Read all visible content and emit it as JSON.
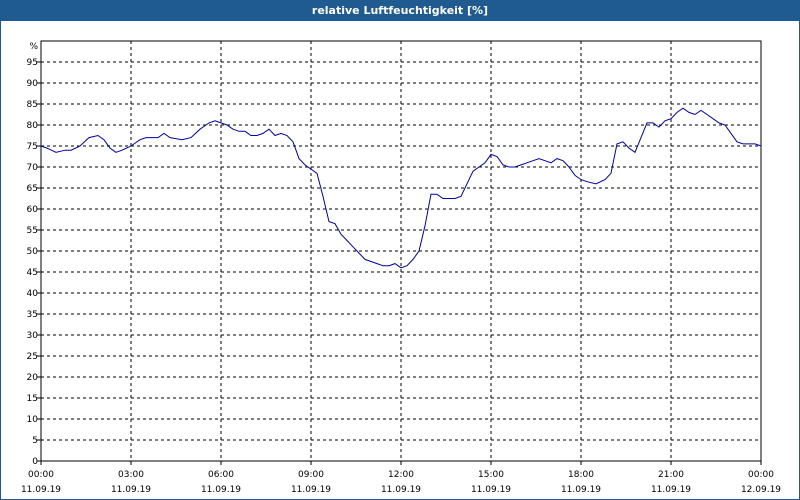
{
  "window": {
    "title": "relative Luftfeuchtigkeit [%]"
  },
  "colors": {
    "title_bar": "#1f5a91",
    "title_text": "#ffffff",
    "line": "#0000aa",
    "grid": "#000000",
    "background": "#ffffff"
  },
  "chart_data": {
    "type": "line",
    "title": "relative Luftfeuchtigkeit [%]",
    "ylabel": "%",
    "xlabel": "",
    "ylim": [
      0,
      100
    ],
    "y_ticks": [
      0,
      5,
      10,
      15,
      20,
      25,
      30,
      35,
      40,
      45,
      50,
      55,
      60,
      65,
      70,
      75,
      80,
      85,
      90,
      95
    ],
    "xlim_hours": [
      0,
      24
    ],
    "x_ticks": [
      {
        "hour": 0,
        "time": "00:00",
        "date": "11.09.19"
      },
      {
        "hour": 3,
        "time": "03:00",
        "date": "11.09.19"
      },
      {
        "hour": 6,
        "time": "06:00",
        "date": "11.09.19"
      },
      {
        "hour": 9,
        "time": "09:00",
        "date": "11.09.19"
      },
      {
        "hour": 12,
        "time": "12:00",
        "date": "11.09.19"
      },
      {
        "hour": 15,
        "time": "15:00",
        "date": "11.09.19"
      },
      {
        "hour": 18,
        "time": "18:00",
        "date": "11.09.19"
      },
      {
        "hour": 21,
        "time": "21:00",
        "date": "11.09.19"
      },
      {
        "hour": 24,
        "time": "00:00",
        "date": "12.09.19"
      }
    ],
    "grid": true,
    "grid_style": "dashed",
    "legend": "none",
    "series": [
      {
        "x": [
          0,
          0.2,
          0.5,
          0.8,
          1.0,
          1.3,
          1.6,
          1.9,
          2.1,
          2.3,
          2.5,
          2.7,
          3.0,
          3.3,
          3.5,
          3.7,
          3.9,
          4.1,
          4.3,
          4.7,
          5.0,
          5.3,
          5.6,
          5.8,
          6.0,
          6.2,
          6.4,
          6.6,
          6.8,
          7.0,
          7.2,
          7.4,
          7.6,
          7.8,
          8.0,
          8.2,
          8.4,
          8.6,
          8.8,
          9.0,
          9.2,
          9.4,
          9.6,
          9.8,
          10.0,
          10.2,
          10.4,
          10.6,
          10.8,
          11.0,
          11.2,
          11.4,
          11.6,
          11.8,
          12.0,
          12.2,
          12.4,
          12.6,
          12.8,
          13.0,
          13.2,
          13.4,
          13.6,
          13.8,
          14.0,
          14.2,
          14.4,
          14.6,
          14.8,
          15.0,
          15.2,
          15.4,
          15.6,
          15.8,
          16.0,
          16.2,
          16.4,
          16.6,
          16.8,
          17.0,
          17.2,
          17.4,
          17.6,
          17.8,
          18.0,
          18.2,
          18.5,
          18.8,
          19.0,
          19.2,
          19.4,
          19.6,
          19.8,
          20.0,
          20.2,
          20.4,
          20.6,
          20.8,
          21.0,
          21.2,
          21.4,
          21.6,
          21.8,
          22.0,
          22.2,
          22.4,
          22.6,
          22.8,
          23.0,
          23.2,
          23.4,
          23.6,
          23.8,
          24.0
        ],
        "values": [
          75.0,
          74.5,
          73.5,
          74.0,
          74.0,
          75.0,
          77.0,
          77.5,
          76.5,
          74.5,
          73.5,
          74.0,
          75.0,
          76.5,
          77.0,
          77.0,
          77.0,
          78.0,
          77.0,
          76.5,
          77.0,
          79.0,
          80.5,
          81.0,
          80.5,
          80.0,
          79.0,
          78.5,
          78.5,
          77.5,
          77.5,
          78.0,
          79.0,
          77.5,
          78.0,
          77.5,
          76.0,
          72.0,
          70.5,
          69.5,
          68.5,
          63.0,
          57.0,
          56.5,
          54.0,
          52.5,
          51.0,
          49.5,
          48.0,
          47.5,
          47.0,
          46.5,
          46.5,
          47.0,
          46.0,
          46.5,
          48.0,
          50.0,
          56.0,
          63.5,
          63.5,
          62.5,
          62.5,
          62.5,
          63.0,
          66.0,
          69.0,
          70.0,
          71.0,
          73.0,
          72.5,
          70.5,
          70.0,
          70.0,
          70.5,
          71.0,
          71.5,
          72.0,
          71.5,
          71.0,
          72.0,
          71.5,
          70.0,
          68.0,
          67.0,
          66.5,
          66.0,
          67.0,
          68.5,
          75.5,
          76.0,
          74.5,
          73.5,
          77.0,
          80.5,
          80.5,
          79.5,
          81.0,
          81.5,
          83.0,
          84.0,
          83.0,
          82.5,
          83.5,
          82.5,
          81.5,
          80.5,
          80.0,
          78.0,
          76.0,
          75.5,
          75.5,
          75.5,
          75.0
        ]
      }
    ]
  }
}
